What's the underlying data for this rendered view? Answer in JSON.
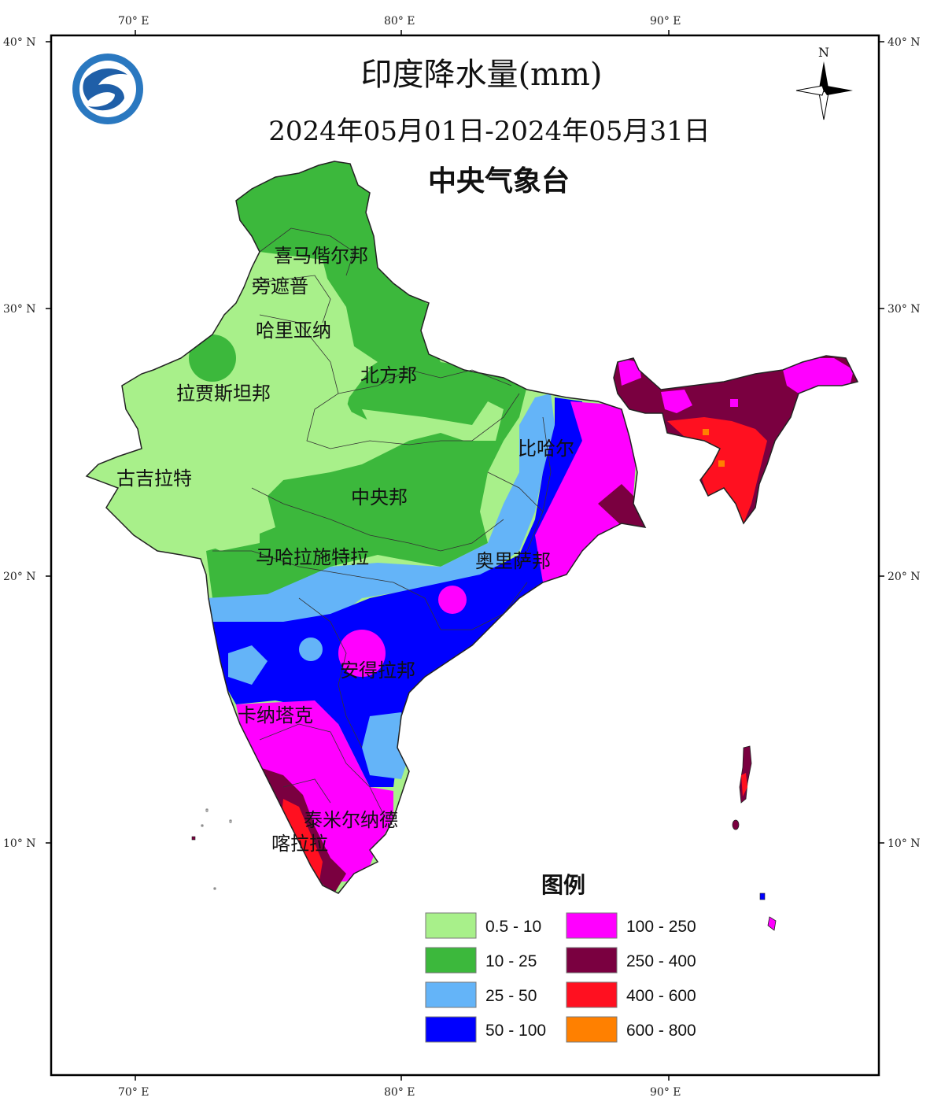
{
  "map": {
    "title": "印度降水量(mm)",
    "date_range": "2024年05月01日-2024年05月31日",
    "source": "中央气象台",
    "north_label": "N",
    "top_ticks": [
      "70° E",
      "80° E",
      "90° E"
    ],
    "bottom_ticks": [
      "70° E",
      "80° E",
      "90° E"
    ],
    "left_ticks": [
      "40° N",
      "30° N",
      "20° N",
      "10° N"
    ],
    "right_ticks": [
      "40° N",
      "30° N",
      "20° N",
      "10° N"
    ],
    "state_labels": [
      "喜马偕尔邦",
      "旁遮普",
      "哈里亚纳",
      "北方邦",
      "拉贾斯坦邦",
      "比哈尔",
      "古吉拉特",
      "中央邦",
      "马哈拉施特拉",
      "奥里萨邦",
      "安得拉邦",
      "卡纳塔克",
      "泰米尔纳德",
      "喀拉拉"
    ]
  },
  "legend": {
    "title": "图例",
    "items": [
      {
        "label": "0.5 - 10",
        "color": "#a8f08a"
      },
      {
        "label": "10  - 25",
        "color": "#3cb83c"
      },
      {
        "label": "25  - 50",
        "color": "#64b4f8"
      },
      {
        "label": "50  - 100",
        "color": "#0000ff"
      },
      {
        "label": "100 - 250",
        "color": "#ff00ff"
      },
      {
        "label": "250 - 400",
        "color": "#7a0040"
      },
      {
        "label": "400 - 600",
        "color": "#ff1020"
      },
      {
        "label": "600 - 800",
        "color": "#ff8000"
      }
    ]
  },
  "colors": {
    "light_green": "#a8f08a",
    "green": "#3cb83c",
    "light_blue": "#64b4f8",
    "blue": "#0000ff",
    "magenta": "#ff00ff",
    "maroon": "#7a0040",
    "red": "#ff1020",
    "orange": "#ff8000"
  },
  "icons": {
    "logo": "cma-logo-icon",
    "north_arrow": "compass-icon"
  }
}
